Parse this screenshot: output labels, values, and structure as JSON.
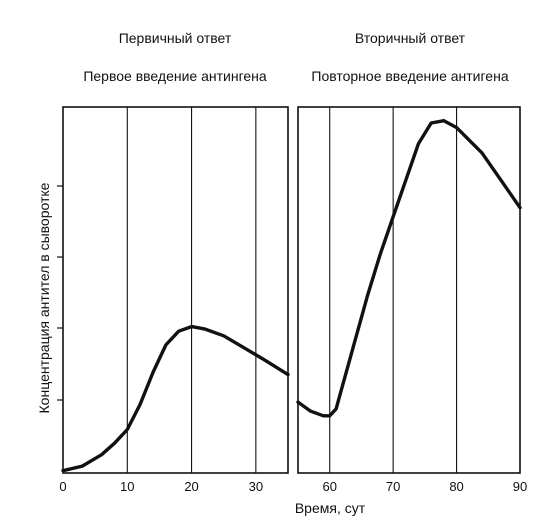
{
  "chart_data": {
    "type": "line",
    "xlabel": "Время, сут",
    "ylabel": "Концентрация антител в сыворотке",
    "grid": "vertical lines at x ticks",
    "panels": [
      {
        "name": "primary",
        "title": "Первичный ответ",
        "subtitle": "Первое введение антингена",
        "xlim": [
          0,
          35
        ],
        "ylim": [
          0,
          8
        ],
        "x_ticks": [
          0,
          10,
          20,
          30
        ],
        "x": [
          0,
          3,
          6,
          8,
          10,
          12,
          14,
          16,
          18,
          20,
          22,
          25,
          28,
          31,
          35
        ],
        "y": [
          0.05,
          0.15,
          0.4,
          0.65,
          0.95,
          1.5,
          2.2,
          2.8,
          3.1,
          3.2,
          3.15,
          3.0,
          2.75,
          2.5,
          2.15
        ]
      },
      {
        "name": "secondary",
        "title": "Вторичный ответ",
        "subtitle": "Повторное введение антигена",
        "xlim": [
          55,
          90
        ],
        "ylim": [
          0,
          8
        ],
        "x_ticks": [
          60,
          70,
          80,
          90
        ],
        "x": [
          55,
          57,
          59,
          60,
          61,
          62,
          64,
          66,
          68,
          70,
          72,
          74,
          76,
          78,
          80,
          84,
          88,
          90
        ],
        "y": [
          1.55,
          1.35,
          1.25,
          1.25,
          1.4,
          1.9,
          2.9,
          3.9,
          4.8,
          5.6,
          6.4,
          7.2,
          7.65,
          7.7,
          7.55,
          7.0,
          6.2,
          5.8
        ]
      }
    ]
  }
}
